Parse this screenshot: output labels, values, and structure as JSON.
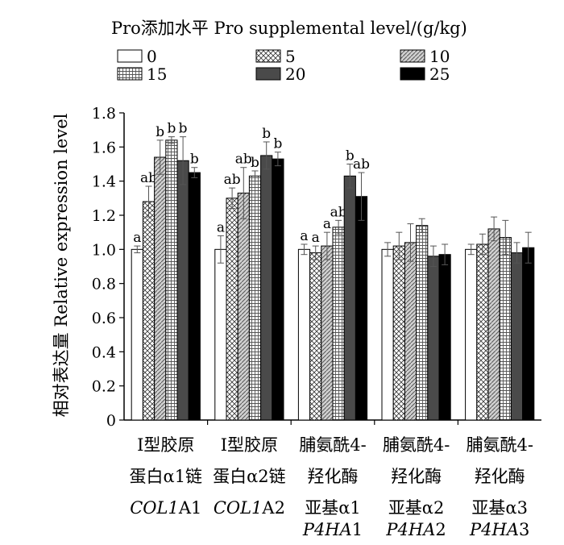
{
  "chart_data": {
    "type": "bar",
    "legend_title": "Pro添加水平 Pro supplemental level/(g/kg)",
    "ylabel": "相对表达量 Relative expression level",
    "ylim": [
      0,
      1.8
    ],
    "yticks": [
      "0",
      "0.2",
      "0.4",
      "0.6",
      "0.8",
      "1.0",
      "1.2",
      "1.4",
      "1.6",
      "1.8"
    ],
    "categories": [
      {
        "line1": "Ⅰ型胶原",
        "line2": "蛋白α1链",
        "line3": "",
        "gene_a": "COL1",
        "gene_b": "A1"
      },
      {
        "line1": "Ⅰ型胶原",
        "line2": "蛋白α2链",
        "line3": "",
        "gene_a": "COL1",
        "gene_b": "A2"
      },
      {
        "line1": "脯氨酰4-",
        "line2": "羟化酶",
        "line3": "亚基α1",
        "gene_a": "P4HA",
        "gene_b": "1"
      },
      {
        "line1": "脯氨酰4-",
        "line2": "羟化酶",
        "line3": "亚基α2",
        "gene_a": "P4HA",
        "gene_b": "2"
      },
      {
        "line1": "脯氨酰4-",
        "line2": "羟化酶",
        "line3": "亚基α3",
        "gene_a": "P4HA",
        "gene_b": "3"
      }
    ],
    "series": [
      {
        "name": "0",
        "pattern": "blank",
        "values": [
          1.0,
          1.0,
          1.0,
          1.0,
          1.0
        ],
        "errors": [
          0.02,
          0.08,
          0.03,
          0.04,
          0.03
        ]
      },
      {
        "name": "5",
        "pattern": "crosshatch",
        "values": [
          1.28,
          1.3,
          0.98,
          1.02,
          1.03
        ],
        "errors": [
          0.09,
          0.06,
          0.04,
          0.08,
          0.06
        ]
      },
      {
        "name": "10",
        "pattern": "diagonal",
        "values": [
          1.54,
          1.33,
          1.02,
          1.04,
          1.12
        ],
        "errors": [
          0.1,
          0.15,
          0.08,
          0.11,
          0.07
        ]
      },
      {
        "name": "15",
        "pattern": "grid",
        "values": [
          1.64,
          1.43,
          1.13,
          1.14,
          1.07
        ],
        "errors": [
          0.02,
          0.03,
          0.04,
          0.04,
          0.1
        ]
      },
      {
        "name": "20",
        "pattern": "darkgray",
        "values": [
          1.52,
          1.55,
          1.43,
          0.96,
          0.98
        ],
        "errors": [
          0.14,
          0.08,
          0.07,
          0.06,
          0.06
        ]
      },
      {
        "name": "25",
        "pattern": "black",
        "values": [
          1.45,
          1.53,
          1.31,
          0.97,
          1.01
        ],
        "errors": [
          0.03,
          0.04,
          0.14,
          0.06,
          0.09
        ]
      }
    ],
    "significance_labels": [
      [
        "a",
        "ab",
        "b",
        "b",
        "b",
        "b"
      ],
      [
        "a",
        "ab",
        "ab",
        "b",
        "b",
        "b"
      ],
      [
        "a",
        "a",
        "a",
        "ab",
        "b",
        "ab"
      ],
      [
        "",
        "",
        "",
        "",
        "",
        ""
      ],
      [
        "",
        "",
        "",
        "",
        "",
        ""
      ]
    ],
    "colors": {
      "darkgray": "#4a4a4a",
      "black": "#000000",
      "pattern_stroke": "#333333"
    }
  }
}
